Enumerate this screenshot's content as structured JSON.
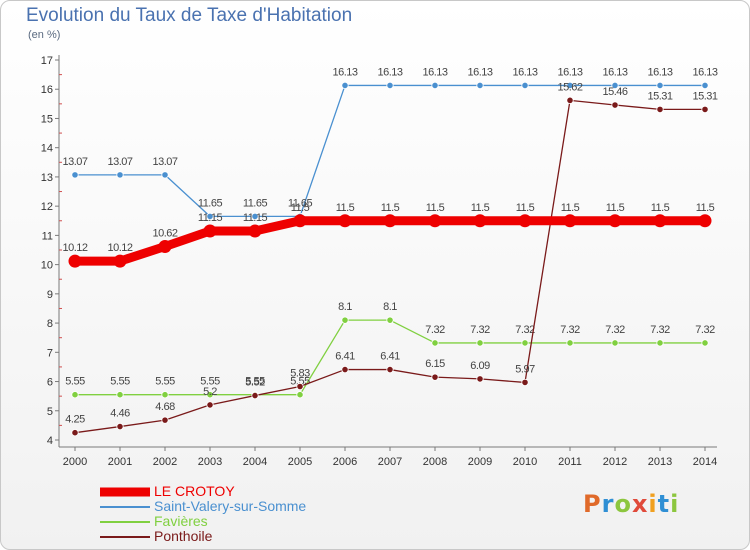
{
  "title": "Evolution du Taux de Taxe d'Habitation",
  "unit": "(en %)",
  "logo": {
    "text": "Proxiti",
    "letter_colors": [
      "#e06a2a",
      "#2f8fd4",
      "#8cc63e",
      "#e04a3a",
      "#f0a020",
      "#2f8fd4",
      "#8cc63e"
    ]
  },
  "chart_data": {
    "type": "line",
    "x": [
      2000,
      2001,
      2002,
      2003,
      2004,
      2005,
      2006,
      2007,
      2008,
      2009,
      2010,
      2011,
      2012,
      2013,
      2014
    ],
    "ylim": [
      4,
      17
    ],
    "yticks": [
      4,
      5,
      6,
      7,
      8,
      9,
      10,
      11,
      12,
      13,
      14,
      15,
      16,
      17
    ],
    "grid": false,
    "legend_position": "bottom-left",
    "series": [
      {
        "name": "LE CROTOY",
        "color": "#ee0000",
        "emphasized": true,
        "values": [
          10.12,
          10.12,
          10.62,
          11.15,
          11.15,
          11.5,
          11.5,
          11.5,
          11.5,
          11.5,
          11.5,
          11.5,
          11.5,
          11.5,
          11.5
        ],
        "labels": [
          "10.12",
          "10.12",
          "10.62",
          "11.15",
          "11.15",
          "11.5",
          "11.5",
          "11.5",
          "11.5",
          "11.5",
          "11.5",
          "11.5",
          "11.5",
          "11.5",
          "11.5"
        ]
      },
      {
        "name": "Saint-Valery-sur-Somme",
        "color": "#4a90d0",
        "values": [
          13.07,
          13.07,
          13.07,
          11.65,
          11.65,
          11.65,
          16.13,
          16.13,
          16.13,
          16.13,
          16.13,
          16.13,
          16.13,
          16.13,
          16.13
        ],
        "labels": [
          "13.07",
          "13.07",
          "13.07",
          "11.65",
          "11.65",
          "11.65",
          "16.13",
          "16.13",
          "16.13",
          "16.13",
          "16.13",
          "16.13",
          "16.13",
          "16.13",
          "16.13"
        ]
      },
      {
        "name": "Favières",
        "color": "#80d040",
        "values": [
          5.55,
          5.55,
          5.55,
          5.55,
          5.55,
          5.55,
          8.1,
          8.1,
          7.32,
          7.32,
          7.32,
          7.32,
          7.32,
          7.32,
          7.32
        ],
        "labels": [
          "5.55",
          "5.55",
          "5.55",
          "5.55",
          "5.55",
          "5.55",
          "8.1",
          "8.1",
          "7.32",
          "7.32",
          "7.32",
          "7.32",
          "7.32",
          "7.32",
          "7.32"
        ]
      },
      {
        "name": "Ponthoile",
        "color": "#7a1a1a",
        "values": [
          4.25,
          4.46,
          4.68,
          5.2,
          5.52,
          5.83,
          6.41,
          6.41,
          6.15,
          6.09,
          5.97,
          15.62,
          15.46,
          15.31,
          15.31
        ],
        "labels": [
          "4.25",
          "4.46",
          "4.68",
          "5.2",
          "5.52",
          "5.83",
          "6.41",
          "6.41",
          "6.15",
          "6.09",
          "5.97",
          "15.62",
          "15.46",
          "15.31",
          "15.31"
        ]
      }
    ]
  }
}
